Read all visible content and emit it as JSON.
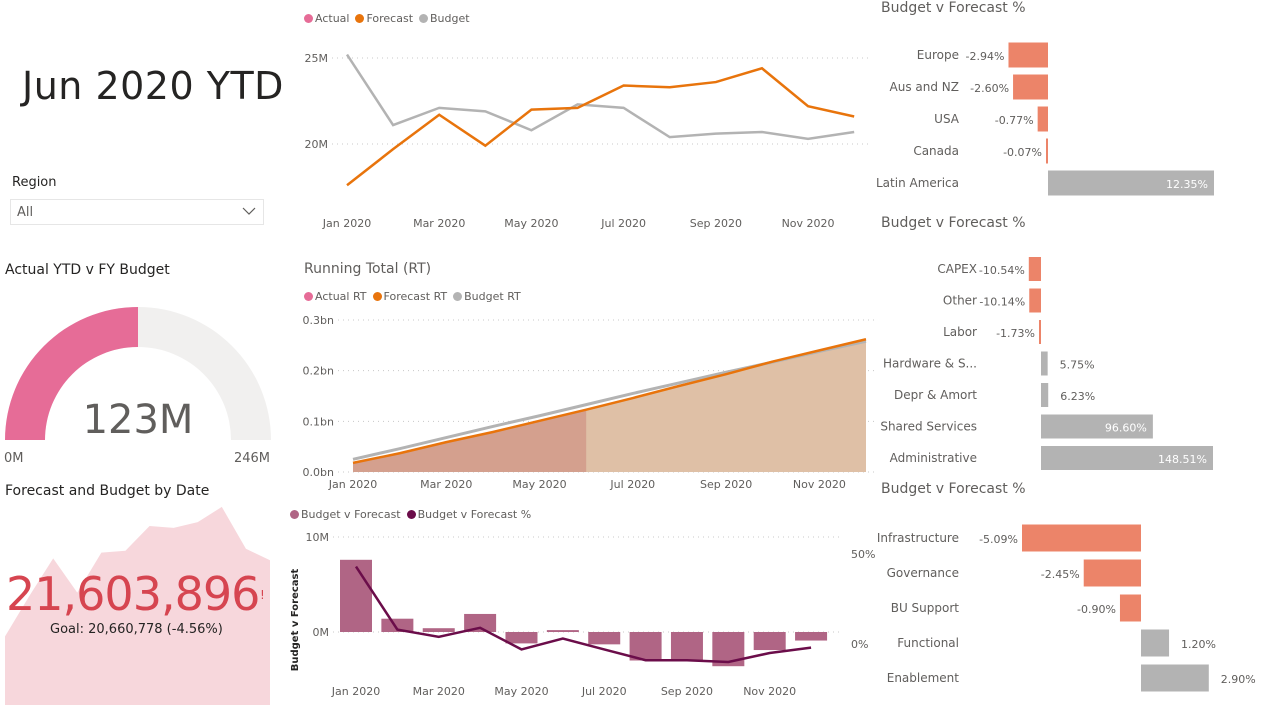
{
  "header": {
    "title": "Jun 2020 YTD"
  },
  "slicer": {
    "label": "Region",
    "value": "All",
    "icon": "chevron-down-icon"
  },
  "gauge": {
    "title": "Actual YTD v FY Budget",
    "value_label": "123M",
    "min_label": "0M",
    "max_label": "246M",
    "value": 123,
    "max": 246,
    "fill_color": "#e66c97",
    "track_color": "#f1f0ef"
  },
  "kpi": {
    "title": "Forecast and Budget by Date",
    "value": "21,603,896",
    "indicator": "!",
    "goal_text": "Goal: 20,660,778 (-4.56%)",
    "color": "#d64550",
    "trend_color": "#f7d7dc",
    "trend_values": [
      17.6,
      19.7,
      21.7,
      19.9,
      22.0,
      22.1,
      23.4,
      23.3,
      23.6,
      24.4,
      22.2,
      21.6
    ]
  },
  "chart_data": [
    {
      "id": "monthly",
      "type": "line",
      "title": "",
      "legend": [
        {
          "name": "Actual",
          "color": "#e66c97"
        },
        {
          "name": "Forecast",
          "color": "#e8740c"
        },
        {
          "name": "Budget",
          "color": "#b3b3b3"
        }
      ],
      "x": [
        "Jan 2020",
        "Feb 2020",
        "Mar 2020",
        "Apr 2020",
        "May 2020",
        "Jun 2020",
        "Jul 2020",
        "Aug 2020",
        "Sep 2020",
        "Oct 2020",
        "Nov 2020",
        "Dec 2020"
      ],
      "x_tick_labels": [
        "Jan 2020",
        "Mar 2020",
        "May 2020",
        "Jul 2020",
        "Sep 2020",
        "Nov 2020"
      ],
      "y_ticks": [
        {
          "v": 20,
          "label": "20M"
        },
        {
          "v": 25,
          "label": "25M"
        }
      ],
      "ylim": [
        16,
        26
      ],
      "series": [
        {
          "name": "Forecast",
          "color": "#e8740c",
          "values": [
            17.6,
            19.7,
            21.7,
            19.9,
            22.0,
            22.1,
            23.4,
            23.3,
            23.6,
            24.4,
            22.2,
            21.6
          ]
        },
        {
          "name": "Budget",
          "color": "#b3b3b3",
          "values": [
            25.2,
            21.1,
            22.1,
            21.9,
            20.8,
            22.3,
            22.1,
            20.4,
            20.6,
            20.7,
            20.3,
            20.7
          ]
        }
      ],
      "grid": true,
      "legend_position": "top-left"
    },
    {
      "id": "running_total",
      "type": "area",
      "title": "Running Total (RT)",
      "legend": [
        {
          "name": "Actual RT",
          "color": "#e66c97"
        },
        {
          "name": "Forecast RT",
          "color": "#e8740c"
        },
        {
          "name": "Budget RT",
          "color": "#b3b3b3"
        }
      ],
      "x": [
        "Jan 2020",
        "Feb 2020",
        "Mar 2020",
        "Apr 2020",
        "May 2020",
        "Jun 2020",
        "Jul 2020",
        "Aug 2020",
        "Sep 2020",
        "Oct 2020",
        "Nov 2020",
        "Dec 2020"
      ],
      "x_tick_labels": [
        "Jan 2020",
        "Mar 2020",
        "May 2020",
        "Jul 2020",
        "Sep 2020",
        "Nov 2020"
      ],
      "y_ticks": [
        {
          "v": 0,
          "label": "0.0bn"
        },
        {
          "v": 0.1,
          "label": "0.1bn"
        },
        {
          "v": 0.2,
          "label": "0.2bn"
        },
        {
          "v": 0.3,
          "label": "0.3bn"
        }
      ],
      "ylim": [
        0,
        0.3
      ],
      "series": [
        {
          "name": "Actual RT",
          "color": "#d4a08e",
          "values": [
            0.018,
            0.037,
            0.059,
            0.079,
            0.101,
            0.123
          ]
        },
        {
          "name": "Forecast RT",
          "color": "#e8740c",
          "fill": "#dfc0a6",
          "values": [
            0.018,
            0.037,
            0.059,
            0.079,
            0.101,
            0.123,
            0.146,
            0.17,
            0.193,
            0.218,
            0.24,
            0.262
          ]
        },
        {
          "name": "Budget RT",
          "color": "#b3b3b3",
          "values": [
            0.025,
            0.046,
            0.068,
            0.09,
            0.111,
            0.133,
            0.155,
            0.176,
            0.197,
            0.217,
            0.238,
            0.258
          ]
        }
      ],
      "grid": true,
      "legend_position": "top-left"
    },
    {
      "id": "variance",
      "type": "bar",
      "title": "",
      "legend": [
        {
          "name": "Budget v Forecast",
          "color": "#b06585"
        },
        {
          "name": "Budget v Forecast %",
          "color": "#6b0d4a"
        }
      ],
      "ylabel": "Budget v Forecast",
      "x": [
        "Jan 2020",
        "Feb 2020",
        "Mar 2020",
        "Apr 2020",
        "May 2020",
        "Jun 2020",
        "Jul 2020",
        "Aug 2020",
        "Sep 2020",
        "Oct 2020",
        "Nov 2020",
        "Dec 2020"
      ],
      "x_tick_labels": [
        "Jan 2020",
        "Mar 2020",
        "May 2020",
        "Jul 2020",
        "Sep 2020",
        "Nov 2020"
      ],
      "y_ticks": [
        {
          "v": 0,
          "label": "0M"
        },
        {
          "v": 10,
          "label": "10M"
        }
      ],
      "y2_ticks": [
        {
          "v": 0,
          "label": "0%"
        },
        {
          "v": 50,
          "label": "50%"
        }
      ],
      "ylim": [
        -5,
        10
      ],
      "y2lim": [
        -30,
        62
      ],
      "series": [
        {
          "name": "Budget v Forecast",
          "color": "#b06585",
          "type": "bar",
          "values": [
            7.6,
            1.4,
            0.4,
            1.9,
            -1.2,
            0.2,
            -1.3,
            -3.0,
            -3.0,
            -3.6,
            -1.9,
            -0.9
          ]
        },
        {
          "name": "Budget v Forecast %",
          "color": "#6b0d4a",
          "type": "line",
          "axis": "y2",
          "values": [
            43,
            8,
            4,
            9,
            -3,
            3,
            -3,
            -9,
            -9,
            -10,
            -5,
            -2
          ]
        }
      ],
      "grid": true,
      "legend_position": "top-left"
    },
    {
      "id": "region_bars",
      "type": "bar",
      "orientation": "horizontal",
      "title": "Budget v Forecast %",
      "categories": [
        "Europe",
        "Aus and NZ",
        "USA",
        "Canada",
        "Latin America"
      ],
      "values": [
        -2.94,
        -2.6,
        -0.77,
        -0.07,
        12.35
      ],
      "labels": [
        "-2.94%",
        "-2.60%",
        "-0.77%",
        "-0.07%",
        "12.35%"
      ],
      "neg_color": "#ec8469",
      "pos_color": "#b3b3b3"
    },
    {
      "id": "category_bars",
      "type": "bar",
      "orientation": "horizontal",
      "title": "Budget v Forecast %",
      "categories": [
        "CAPEX",
        "Other",
        "Labor",
        "Hardware & S...",
        "Depr & Amort",
        "Shared Services",
        "Administrative"
      ],
      "values": [
        -10.54,
        -10.14,
        -1.73,
        5.75,
        6.23,
        96.6,
        148.51
      ],
      "labels": [
        "-10.54%",
        "-10.14%",
        "-1.73%",
        "5.75%",
        "6.23%",
        "96.60%",
        "148.51%"
      ],
      "neg_color": "#ec8469",
      "pos_color": "#b3b3b3"
    },
    {
      "id": "function_bars",
      "type": "bar",
      "orientation": "horizontal",
      "title": "Budget v Forecast %",
      "categories": [
        "Infrastructure",
        "Governance",
        "BU Support",
        "Functional",
        "Enablement"
      ],
      "values": [
        -5.09,
        -2.45,
        -0.9,
        1.2,
        2.9
      ],
      "labels": [
        "-5.09%",
        "-2.45%",
        "-0.90%",
        "1.20%",
        "2.90%"
      ],
      "neg_color": "#ec8469",
      "pos_color": "#b3b3b3"
    }
  ]
}
